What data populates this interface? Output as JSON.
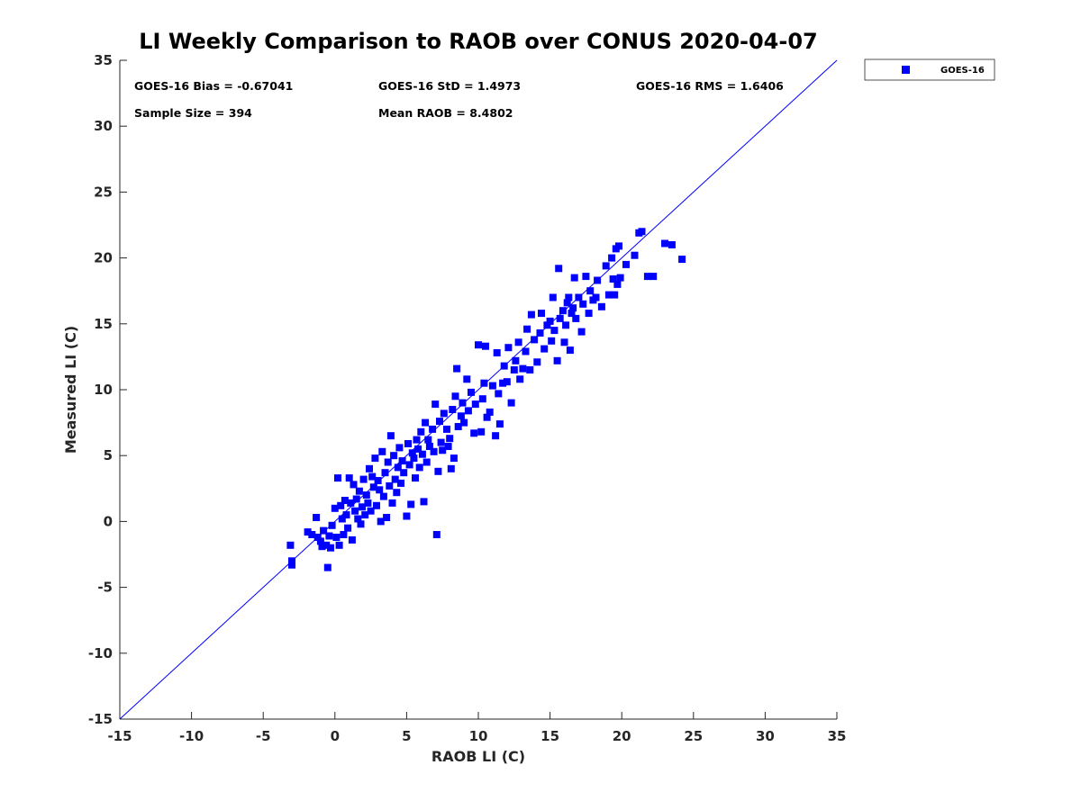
{
  "chart_data": {
    "type": "scatter",
    "title": "LI Weekly Comparison to RAOB over CONUS 2020-04-07",
    "xlabel": "RAOB LI (C)",
    "ylabel": "Measured LI (C)",
    "xlim": [
      -15,
      35
    ],
    "ylim": [
      -15,
      35
    ],
    "xticks": [
      "-15",
      "-10",
      "-5",
      "0",
      "5",
      "10",
      "15",
      "20",
      "25",
      "30",
      "35"
    ],
    "yticks": [
      "-15",
      "-10",
      "-5",
      "0",
      "5",
      "10",
      "15",
      "20",
      "25",
      "30",
      "35"
    ],
    "grid": false,
    "legend_position": "outside-top-right",
    "one_to_one_line": {
      "from": [
        -15,
        -15
      ],
      "to": [
        35,
        35
      ],
      "color": "#0000ff"
    },
    "annotations": [
      "GOES-16 Bias = -0.67041",
      "GOES-16 StD = 1.4973",
      "GOES-16 RMS = 1.6406",
      "Sample Size = 394",
      "Mean RAOB = 8.4802"
    ],
    "series": [
      {
        "name": "GOES-16",
        "color": "#0000ff",
        "marker": "square",
        "points": [
          [
            -3.1,
            -1.8
          ],
          [
            -3.0,
            -3.0
          ],
          [
            -3.0,
            -3.3
          ],
          [
            -1.9,
            -0.8
          ],
          [
            -1.6,
            -1.0
          ],
          [
            -1.3,
            0.3
          ],
          [
            -1.2,
            -1.2
          ],
          [
            -1.0,
            -1.5
          ],
          [
            -0.9,
            -1.9
          ],
          [
            -0.8,
            -0.7
          ],
          [
            -0.6,
            -1.8
          ],
          [
            -0.5,
            -3.5
          ],
          [
            -0.4,
            -1.1
          ],
          [
            -0.3,
            -2.0
          ],
          [
            -0.2,
            -0.3
          ],
          [
            0.0,
            1.0
          ],
          [
            0.1,
            -1.2
          ],
          [
            0.2,
            3.3
          ],
          [
            0.3,
            -1.8
          ],
          [
            0.4,
            1.2
          ],
          [
            0.5,
            0.2
          ],
          [
            0.6,
            -1.0
          ],
          [
            0.7,
            1.6
          ],
          [
            0.8,
            0.5
          ],
          [
            0.9,
            -0.5
          ],
          [
            1.0,
            3.3
          ],
          [
            1.1,
            1.4
          ],
          [
            1.2,
            -1.4
          ],
          [
            1.3,
            2.8
          ],
          [
            1.4,
            0.8
          ],
          [
            1.5,
            1.7
          ],
          [
            1.6,
            0.2
          ],
          [
            1.7,
            2.3
          ],
          [
            1.8,
            -0.2
          ],
          [
            1.9,
            1.1
          ],
          [
            2.0,
            3.2
          ],
          [
            2.1,
            0.5
          ],
          [
            2.2,
            2.0
          ],
          [
            2.3,
            1.4
          ],
          [
            2.4,
            4.0
          ],
          [
            2.5,
            0.8
          ],
          [
            2.6,
            3.4
          ],
          [
            2.7,
            2.6
          ],
          [
            2.8,
            4.8
          ],
          [
            2.9,
            1.2
          ],
          [
            3.0,
            3.1
          ],
          [
            3.1,
            2.4
          ],
          [
            3.2,
            0.0
          ],
          [
            3.3,
            5.3
          ],
          [
            3.4,
            1.9
          ],
          [
            3.5,
            3.7
          ],
          [
            3.6,
            0.3
          ],
          [
            3.7,
            4.5
          ],
          [
            3.8,
            2.7
          ],
          [
            3.9,
            6.5
          ],
          [
            4.0,
            1.4
          ],
          [
            4.1,
            5.0
          ],
          [
            4.2,
            3.2
          ],
          [
            4.3,
            2.2
          ],
          [
            4.4,
            4.1
          ],
          [
            4.5,
            5.6
          ],
          [
            4.6,
            2.9
          ],
          [
            4.7,
            4.6
          ],
          [
            4.8,
            3.7
          ],
          [
            5.0,
            0.4
          ],
          [
            5.1,
            5.9
          ],
          [
            5.2,
            4.3
          ],
          [
            5.3,
            1.3
          ],
          [
            5.4,
            5.2
          ],
          [
            5.5,
            4.8
          ],
          [
            5.6,
            3.3
          ],
          [
            5.7,
            6.2
          ],
          [
            5.8,
            5.5
          ],
          [
            5.9,
            4.1
          ],
          [
            6.0,
            6.8
          ],
          [
            6.1,
            5.1
          ],
          [
            6.2,
            1.5
          ],
          [
            6.3,
            7.5
          ],
          [
            6.4,
            4.5
          ],
          [
            6.5,
            6.2
          ],
          [
            6.6,
            5.7
          ],
          [
            6.8,
            7.0
          ],
          [
            6.9,
            5.3
          ],
          [
            7.0,
            8.9
          ],
          [
            7.1,
            -1.0
          ],
          [
            7.2,
            3.8
          ],
          [
            7.3,
            7.6
          ],
          [
            7.4,
            6.0
          ],
          [
            7.5,
            5.4
          ],
          [
            7.6,
            8.2
          ],
          [
            7.8,
            7.0
          ],
          [
            7.9,
            5.7
          ],
          [
            8.0,
            6.3
          ],
          [
            8.1,
            4.0
          ],
          [
            8.2,
            8.5
          ],
          [
            8.3,
            4.8
          ],
          [
            8.4,
            9.5
          ],
          [
            8.5,
            11.6
          ],
          [
            8.6,
            7.2
          ],
          [
            8.8,
            8.0
          ],
          [
            8.9,
            9.0
          ],
          [
            9.0,
            7.5
          ],
          [
            9.2,
            10.8
          ],
          [
            9.3,
            8.4
          ],
          [
            9.5,
            9.8
          ],
          [
            9.7,
            6.7
          ],
          [
            9.8,
            8.9
          ],
          [
            10.0,
            13.4
          ],
          [
            10.2,
            6.8
          ],
          [
            10.3,
            9.3
          ],
          [
            10.4,
            10.5
          ],
          [
            10.5,
            13.3
          ],
          [
            10.6,
            7.9
          ],
          [
            10.8,
            8.3
          ],
          [
            11.0,
            10.3
          ],
          [
            11.2,
            6.5
          ],
          [
            11.3,
            12.8
          ],
          [
            11.4,
            9.7
          ],
          [
            11.5,
            7.4
          ],
          [
            11.7,
            10.5
          ],
          [
            11.8,
            11.8
          ],
          [
            12.0,
            10.6
          ],
          [
            12.1,
            13.2
          ],
          [
            12.3,
            9.0
          ],
          [
            12.5,
            11.5
          ],
          [
            12.6,
            12.2
          ],
          [
            12.8,
            13.6
          ],
          [
            12.9,
            10.8
          ],
          [
            13.1,
            11.6
          ],
          [
            13.3,
            12.9
          ],
          [
            13.4,
            14.6
          ],
          [
            13.6,
            11.5
          ],
          [
            13.7,
            15.7
          ],
          [
            13.9,
            13.8
          ],
          [
            14.1,
            12.1
          ],
          [
            14.3,
            14.3
          ],
          [
            14.4,
            15.8
          ],
          [
            14.6,
            13.1
          ],
          [
            14.8,
            14.9
          ],
          [
            15.0,
            15.2
          ],
          [
            15.1,
            13.7
          ],
          [
            15.2,
            17.0
          ],
          [
            15.3,
            14.5
          ],
          [
            15.5,
            12.2
          ],
          [
            15.6,
            19.2
          ],
          [
            15.7,
            15.4
          ],
          [
            15.9,
            16.0
          ],
          [
            16.0,
            13.6
          ],
          [
            16.1,
            14.9
          ],
          [
            16.2,
            16.6
          ],
          [
            16.3,
            17.0
          ],
          [
            16.4,
            13.0
          ],
          [
            16.5,
            15.8
          ],
          [
            16.6,
            16.2
          ],
          [
            16.7,
            18.5
          ],
          [
            16.8,
            15.4
          ],
          [
            17.0,
            17.0
          ],
          [
            17.2,
            14.4
          ],
          [
            17.3,
            16.5
          ],
          [
            17.5,
            18.6
          ],
          [
            17.7,
            15.8
          ],
          [
            17.8,
            17.5
          ],
          [
            18.0,
            16.8
          ],
          [
            18.2,
            17.0
          ],
          [
            18.3,
            18.3
          ],
          [
            18.6,
            16.3
          ],
          [
            18.9,
            19.4
          ],
          [
            19.1,
            17.2
          ],
          [
            19.3,
            20.0
          ],
          [
            19.4,
            18.4
          ],
          [
            19.5,
            17.2
          ],
          [
            19.6,
            20.7
          ],
          [
            19.7,
            18.0
          ],
          [
            19.8,
            20.9
          ],
          [
            19.9,
            18.5
          ],
          [
            20.3,
            19.5
          ],
          [
            20.9,
            20.2
          ],
          [
            21.2,
            21.9
          ],
          [
            21.4,
            22.0
          ],
          [
            21.8,
            18.6
          ],
          [
            22.2,
            18.6
          ],
          [
            23.0,
            21.1
          ],
          [
            23.5,
            21.0
          ],
          [
            24.2,
            19.9
          ]
        ]
      }
    ]
  }
}
